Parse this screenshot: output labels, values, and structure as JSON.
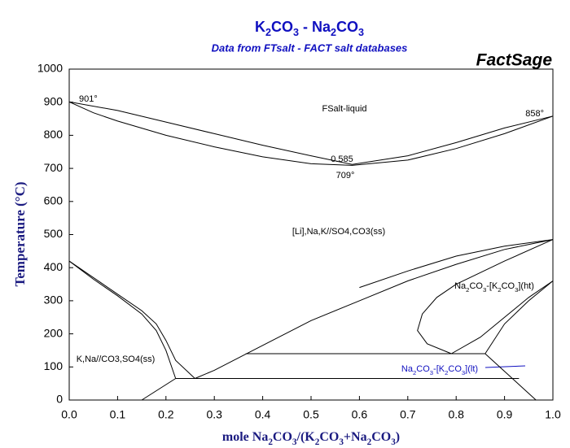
{
  "chart_data": {
    "type": "line",
    "title": "K2CO3 - Na2CO3",
    "subtitle": "Data from FTsalt - FACT salt databases",
    "brand": "FactSage",
    "x_label": "mole Na2CO3/(K2CO3+Na2CO3)",
    "y_label": "Temperature (°C)",
    "xlim": [
      0,
      1
    ],
    "ylim": [
      0,
      1000
    ],
    "xticks": [
      {
        "value": 0,
        "label": "0.0"
      },
      0.1,
      0.2,
      0.3,
      0.4,
      0.5,
      0.6,
      0.7,
      0.8,
      0.9,
      {
        "value": 1,
        "label": "1.0"
      }
    ],
    "yticks": [
      0,
      100,
      200,
      300,
      400,
      500,
      600,
      700,
      800,
      900,
      1000
    ],
    "grid": false,
    "series": [
      {
        "color": "#000000",
        "x": [
          0,
          0.1,
          0.2,
          0.3,
          0.4,
          0.5,
          0.585,
          0.7,
          0.8,
          0.9,
          1
        ],
        "values": [
          901,
          875,
          840,
          805,
          770,
          738,
          712,
          738,
          778,
          822,
          858
        ]
      },
      {
        "color": "#000000",
        "x": [
          0,
          0.05,
          0.1,
          0.2,
          0.3,
          0.4,
          0.5,
          0.585,
          0.7,
          0.8,
          0.9,
          1
        ],
        "values": [
          901,
          868,
          843,
          800,
          765,
          735,
          714,
          709,
          725,
          760,
          805,
          858
        ]
      },
      {
        "color": "#000000",
        "x": [
          0,
          0.05,
          0.1,
          0.15,
          0.18,
          0.2,
          0.22,
          0.26
        ],
        "values": [
          420,
          370,
          320,
          270,
          230,
          180,
          120,
          65
        ]
      },
      {
        "color": "#000000",
        "x": [
          0,
          0.05,
          0.1,
          0.15,
          0.18,
          0.2,
          0.22
        ],
        "values": [
          420,
          365,
          315,
          260,
          210,
          150,
          65
        ]
      },
      {
        "color": "#000000",
        "x": [
          0.15,
          0.22
        ],
        "values": [
          0,
          65
        ]
      },
      {
        "color": "#000000",
        "x": [
          0.22,
          0.93
        ],
        "values": [
          65,
          65
        ]
      },
      {
        "color": "#000000",
        "x": [
          0.26,
          0.3,
          0.4,
          0.5,
          0.6,
          0.7,
          0.8,
          0.9,
          1
        ],
        "values": [
          65,
          90,
          165,
          240,
          300,
          360,
          410,
          455,
          485
        ]
      },
      {
        "color": "#000000",
        "x": [
          0.6,
          0.7,
          0.8,
          0.9,
          1
        ],
        "values": [
          340,
          390,
          435,
          465,
          485
        ]
      },
      {
        "color": "#000000",
        "x": [
          0.79,
          0.74,
          0.72,
          0.73,
          0.76,
          0.8,
          0.9,
          1
        ],
        "values": [
          140,
          170,
          210,
          260,
          310,
          350,
          420,
          485
        ]
      },
      {
        "color": "#000000",
        "x": [
          0.365,
          0.86
        ],
        "values": [
          140,
          140
        ]
      },
      {
        "color": "#000000",
        "x": [
          0.79,
          0.85,
          0.9,
          0.95,
          1
        ],
        "values": [
          140,
          190,
          250,
          310,
          360
        ]
      },
      {
        "color": "#000000",
        "x": [
          0.86,
          0.9,
          0.95,
          1
        ],
        "values": [
          140,
          230,
          300,
          360
        ]
      },
      {
        "color": "#000000",
        "x": [
          0.86,
          0.965
        ],
        "values": [
          140,
          0
        ]
      }
    ],
    "annotations": [
      "901°",
      "858°",
      "0.585",
      "709°",
      "FSalt-liquid",
      "[Li],Na,K//SO4,CO3(ss)",
      "Na2CO3-[K2CO3](ht)",
      "Na2CO3-[K2CO3](lt)",
      "K,Na//CO3,SO4(ss)"
    ]
  }
}
